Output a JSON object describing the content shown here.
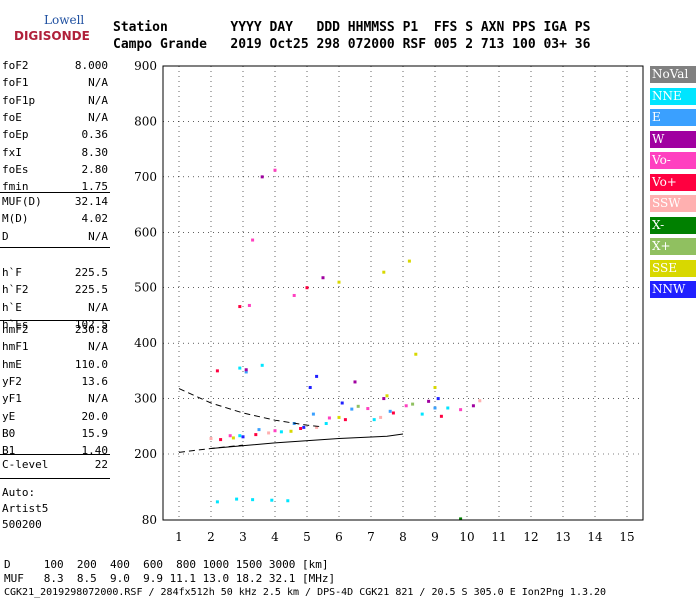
{
  "logo": {
    "line1": "Lowell",
    "line2": "DIGISONDE"
  },
  "header": {
    "labels": "Station        YYYY DAY   DDD HHMMSS P1  FFS S AXN PPS IGA PS",
    "values": "Campo Grande   2019 Oct25 298 072000 RSF 005 2 713 100 03+ 36"
  },
  "parameters": {
    "group1": [
      {
        "name": "foF2",
        "value": "8.000"
      },
      {
        "name": "foF1",
        "value": "N/A"
      },
      {
        "name": "foF1p",
        "value": "N/A"
      },
      {
        "name": "foE",
        "value": "N/A"
      },
      {
        "name": "foEp",
        "value": "0.36"
      },
      {
        "name": "fxI",
        "value": "8.30"
      },
      {
        "name": "foEs",
        "value": "2.80"
      },
      {
        "name": "fmin",
        "value": "1.75"
      }
    ],
    "group2": [
      {
        "name": "MUF(D)",
        "value": "32.14"
      },
      {
        "name": "M(D)",
        "value": "4.02"
      },
      {
        "name": "D",
        "value": "N/A"
      }
    ],
    "group3": [
      {
        "name": "h`F",
        "value": "225.5"
      },
      {
        "name": "h`F2",
        "value": "225.5"
      },
      {
        "name": "h`E",
        "value": "N/A"
      },
      {
        "name": "h`Es",
        "value": "102.5"
      }
    ],
    "group4": [
      {
        "name": "hmF2",
        "value": "230.8"
      },
      {
        "name": "hmF1",
        "value": "N/A"
      },
      {
        "name": "hmE",
        "value": "110.0"
      },
      {
        "name": "yF2",
        "value": "13.6"
      },
      {
        "name": "yF1",
        "value": "N/A"
      },
      {
        "name": "yE",
        "value": "20.0"
      },
      {
        "name": "B0",
        "value": "15.9"
      },
      {
        "name": "B1",
        "value": "1.40"
      }
    ],
    "group5": [
      {
        "name": "C-level",
        "value": "22"
      }
    ]
  },
  "autoscaling": {
    "line1": "Auto:",
    "line2": "Artist5",
    "line3": "500200"
  },
  "legend": [
    {
      "label": "NoVal",
      "color": "#808080",
      "text": "#ffffff"
    },
    {
      "label": "NNE",
      "color": "#00e5ff",
      "text": "#ffffff"
    },
    {
      "label": "E",
      "color": "#3aa0ff",
      "text": "#ffffff"
    },
    {
      "label": "W",
      "color": "#a000a0",
      "text": "#ffffff"
    },
    {
      "label": "Vo-",
      "color": "#ff40c0",
      "text": "#ffffff"
    },
    {
      "label": "Vo+",
      "color": "#ff0040",
      "text": "#ffffff"
    },
    {
      "label": "SSW",
      "color": "#ffb0b0",
      "text": "#ffffff"
    },
    {
      "label": "X-",
      "color": "#008000",
      "text": "#ffffff"
    },
    {
      "label": "X+",
      "color": "#90c060",
      "text": "#ffffff"
    },
    {
      "label": "SSE",
      "color": "#d8d800",
      "text": "#ffffff"
    },
    {
      "label": "NNW",
      "color": "#2020ff",
      "text": "#ffffff"
    }
  ],
  "footer": {
    "line1": "D     100  200  400  600  800 1000 1500 3000 [km]",
    "line2": "MUF   8.3  8.5  9.0  9.9 11.1 13.0 18.2 32.1 [MHz]",
    "line3": "CGK21_2019298072000.RSF / 284fx512h 50 kHz 2.5 km / DPS-4D CGK21 821 / 20.5 S 305.0 E Ion2Png 1.3.20"
  },
  "chart_data": {
    "type": "scatter",
    "title": "",
    "xlabel": "",
    "ylabel": "",
    "xlim": [
      0.5,
      15.5
    ],
    "ylim": [
      80,
      900
    ],
    "x_ticks": [
      1,
      2,
      3,
      4,
      5,
      6,
      7,
      8,
      9,
      10,
      11,
      12,
      13,
      14,
      15
    ],
    "y_ticks": [
      80,
      200,
      300,
      400,
      500,
      600,
      700,
      800,
      900
    ],
    "grid": "dotted",
    "legend_position": "right",
    "series": [
      {
        "name": "NNE",
        "values": [
          {
            "x": 2.2,
            "y": 113
          },
          {
            "x": 2.8,
            "y": 118
          },
          {
            "x": 3.3,
            "y": 117
          },
          {
            "x": 3.9,
            "y": 116
          },
          {
            "x": 4.4,
            "y": 115
          },
          {
            "x": 2.9,
            "y": 233
          },
          {
            "x": 4.2,
            "y": 240
          },
          {
            "x": 5.6,
            "y": 255
          },
          {
            "x": 7.1,
            "y": 262
          },
          {
            "x": 8.6,
            "y": 272
          },
          {
            "x": 9.4,
            "y": 283
          },
          {
            "x": 2.9,
            "y": 355
          },
          {
            "x": 3.6,
            "y": 360
          }
        ]
      },
      {
        "name": "E",
        "values": [
          {
            "x": 3.5,
            "y": 244
          },
          {
            "x": 4.6,
            "y": 255
          },
          {
            "x": 5.2,
            "y": 272
          },
          {
            "x": 6.4,
            "y": 281
          },
          {
            "x": 7.6,
            "y": 277
          },
          {
            "x": 9.0,
            "y": 283
          },
          {
            "x": 3.1,
            "y": 348
          }
        ]
      },
      {
        "name": "W",
        "values": [
          {
            "x": 3.1,
            "y": 352
          },
          {
            "x": 6.5,
            "y": 330
          },
          {
            "x": 7.4,
            "y": 300
          },
          {
            "x": 8.8,
            "y": 295
          },
          {
            "x": 10.2,
            "y": 287
          },
          {
            "x": 5.5,
            "y": 518
          },
          {
            "x": 3.6,
            "y": 700
          }
        ]
      },
      {
        "name": "Vo-",
        "values": [
          {
            "x": 2.6,
            "y": 233
          },
          {
            "x": 4.0,
            "y": 242
          },
          {
            "x": 5.7,
            "y": 265
          },
          {
            "x": 6.9,
            "y": 282
          },
          {
            "x": 8.1,
            "y": 287
          },
          {
            "x": 9.8,
            "y": 280
          },
          {
            "x": 3.2,
            "y": 468
          },
          {
            "x": 4.6,
            "y": 486
          },
          {
            "x": 3.3,
            "y": 586
          },
          {
            "x": 4.0,
            "y": 712
          }
        ]
      },
      {
        "name": "Vo+",
        "values": [
          {
            "x": 2.3,
            "y": 226
          },
          {
            "x": 3.4,
            "y": 235
          },
          {
            "x": 4.8,
            "y": 246
          },
          {
            "x": 6.2,
            "y": 262
          },
          {
            "x": 7.7,
            "y": 274
          },
          {
            "x": 9.2,
            "y": 268
          },
          {
            "x": 2.2,
            "y": 350
          },
          {
            "x": 2.9,
            "y": 466
          },
          {
            "x": 5.0,
            "y": 500
          }
        ]
      },
      {
        "name": "SSW",
        "values": [
          {
            "x": 2.0,
            "y": 228
          },
          {
            "x": 3.8,
            "y": 238
          },
          {
            "x": 5.3,
            "y": 248
          },
          {
            "x": 7.3,
            "y": 266
          },
          {
            "x": 10.4,
            "y": 296
          }
        ]
      },
      {
        "name": "X-",
        "values": [
          {
            "x": 9.8,
            "y": 82
          }
        ]
      },
      {
        "name": "X+",
        "values": [
          {
            "x": 6.6,
            "y": 286
          },
          {
            "x": 8.3,
            "y": 290
          }
        ]
      },
      {
        "name": "SSE",
        "values": [
          {
            "x": 2.7,
            "y": 229
          },
          {
            "x": 4.5,
            "y": 241
          },
          {
            "x": 6.0,
            "y": 266
          },
          {
            "x": 7.5,
            "y": 305
          },
          {
            "x": 8.4,
            "y": 380
          },
          {
            "x": 9.0,
            "y": 320
          },
          {
            "x": 6.0,
            "y": 510
          },
          {
            "x": 7.4,
            "y": 528
          },
          {
            "x": 8.2,
            "y": 548
          }
        ]
      },
      {
        "name": "NNW",
        "values": [
          {
            "x": 3.0,
            "y": 231
          },
          {
            "x": 4.9,
            "y": 248
          },
          {
            "x": 5.1,
            "y": 320
          },
          {
            "x": 5.3,
            "y": 340
          },
          {
            "x": 6.1,
            "y": 292
          },
          {
            "x": 9.1,
            "y": 300
          }
        ]
      }
    ],
    "traces": [
      {
        "style": "dashed",
        "points": [
          {
            "x": 1.0,
            "y": 318
          },
          {
            "x": 2.0,
            "y": 292
          },
          {
            "x": 3.0,
            "y": 274
          },
          {
            "x": 4.0,
            "y": 261
          },
          {
            "x": 5.0,
            "y": 252
          },
          {
            "x": 5.5,
            "y": 249
          }
        ]
      },
      {
        "style": "dashed",
        "points": [
          {
            "x": 1.0,
            "y": 203
          },
          {
            "x": 2.0,
            "y": 210
          },
          {
            "x": 3.0,
            "y": 216
          }
        ]
      },
      {
        "style": "solid",
        "points": [
          {
            "x": 2.0,
            "y": 210
          },
          {
            "x": 4.0,
            "y": 220
          },
          {
            "x": 6.0,
            "y": 228
          },
          {
            "x": 7.5,
            "y": 232
          },
          {
            "x": 8.0,
            "y": 236
          }
        ]
      }
    ]
  }
}
